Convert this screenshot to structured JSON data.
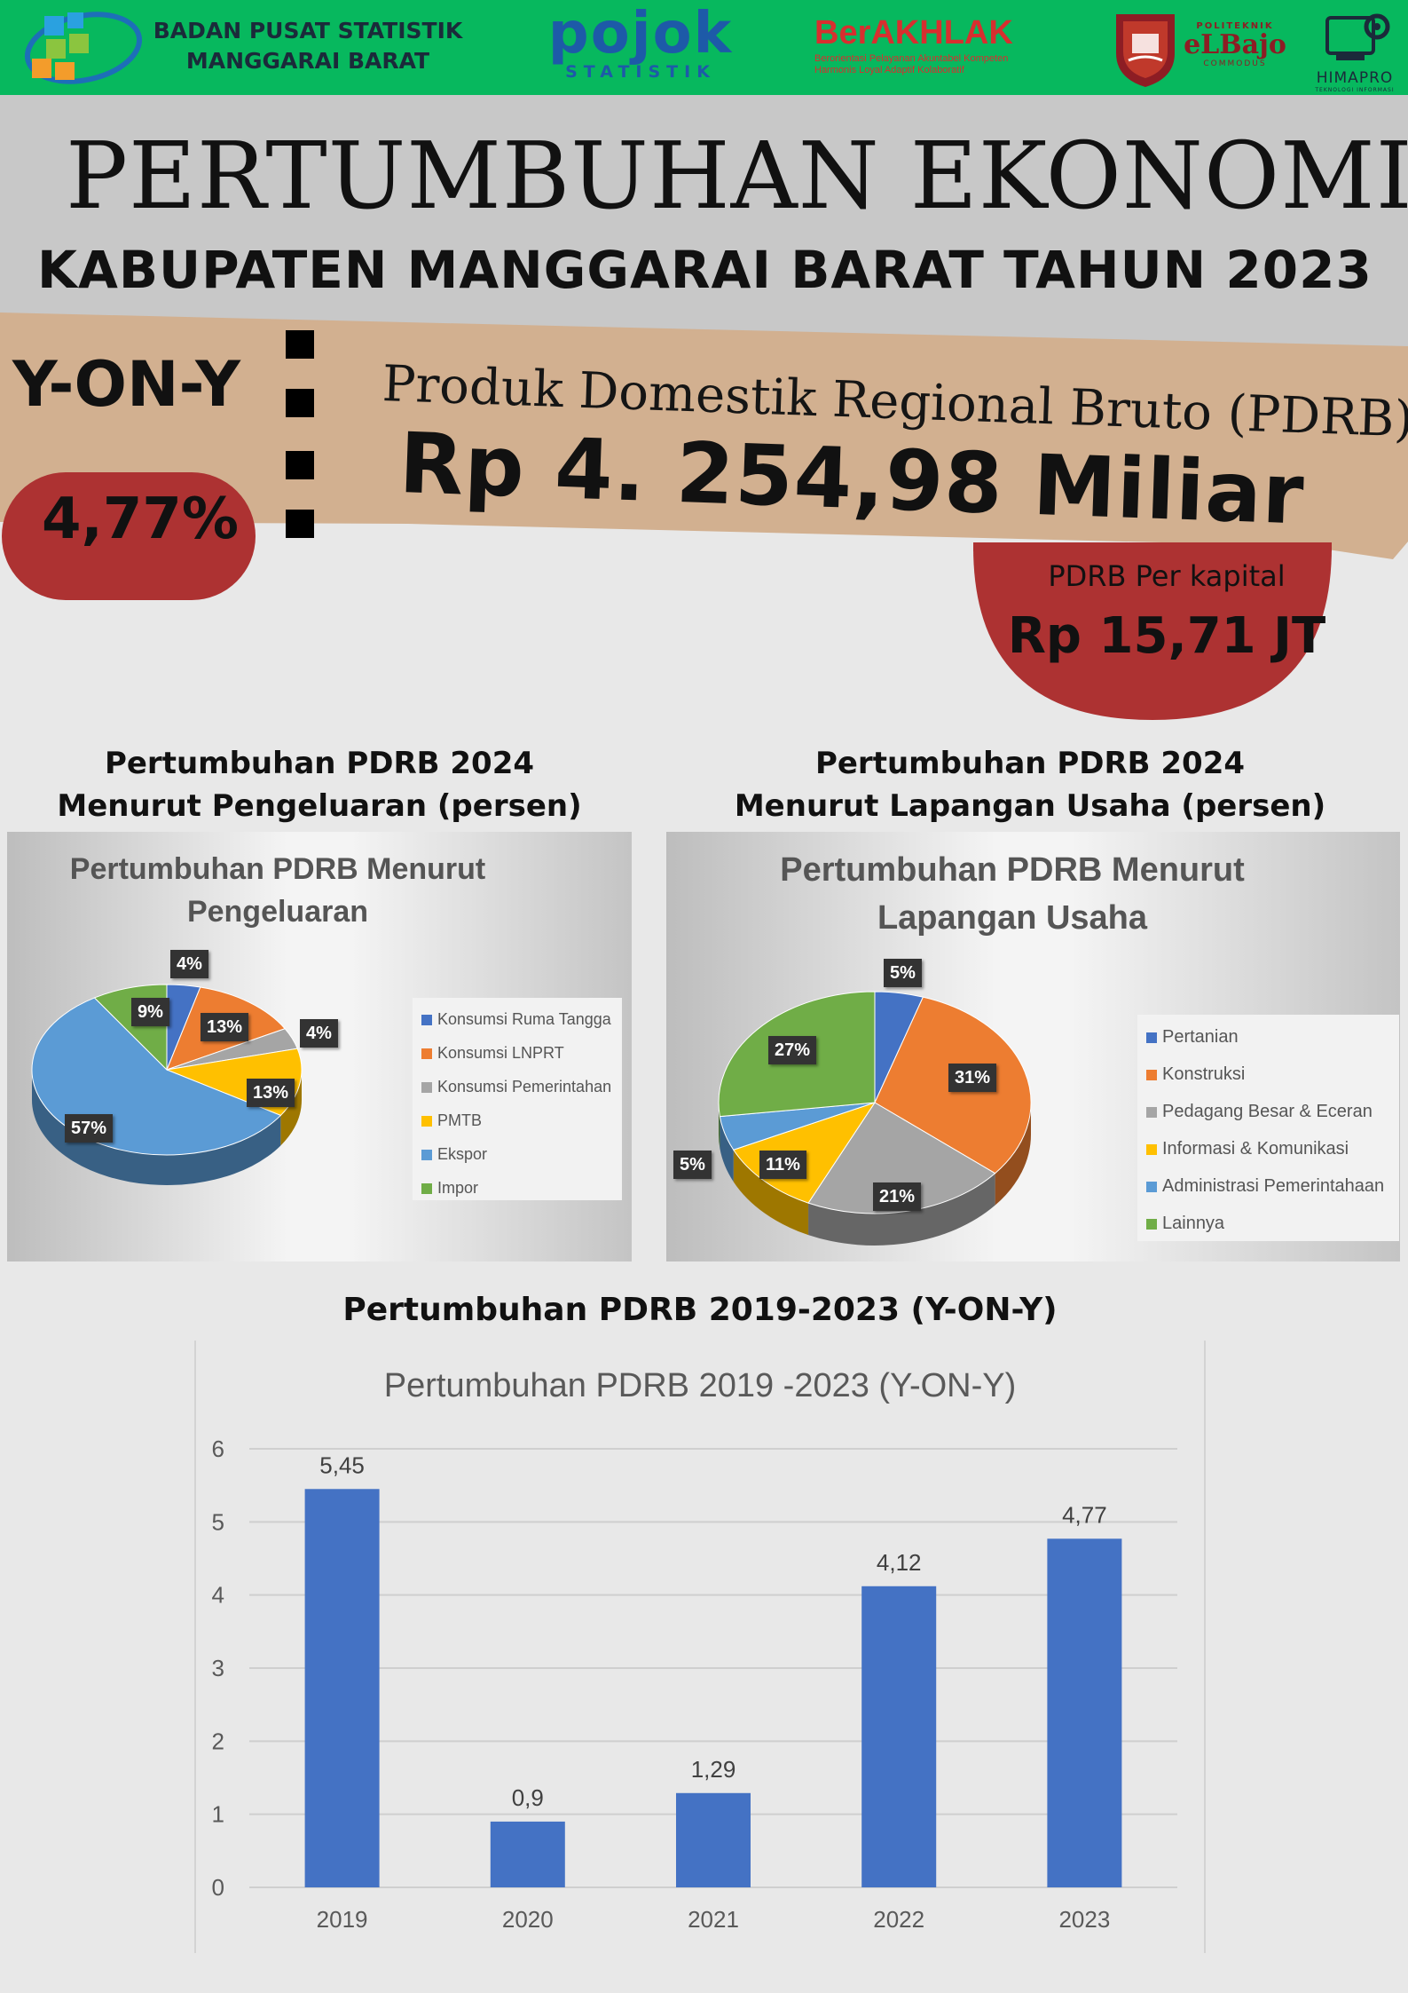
{
  "header": {
    "bps_line1": "BADAN PUSAT STATISTIK",
    "bps_line2": "MANGGARAI BARAT",
    "pojok_word": "pojok",
    "pojok_sub": "STATISTIK",
    "berakhlak_word": "BerAKHLAK",
    "berakhlak_sub1": "Berorientasi Pelayanan Akuntabel Kompeten",
    "berakhlak_sub2": "Harmonis Loyal Adaptif Kolaboratif",
    "poltek_small": "POLITEKNIK",
    "poltek_big": "eLBajo",
    "poltek_sub": "COMMODUS",
    "himapro": "HIMAPRO",
    "himapro_sub": "TEKNOLOGI INFORMASI"
  },
  "title": {
    "main": "PERTUMBUHAN EKONOMI",
    "sub": "KABUPATEN MANGGARAI BARAT TAHUN 2023"
  },
  "highlight": {
    "yony_label": "Y-ON-Y",
    "growth": "4,77%",
    "pdrb_label": "Produk Domestik Regional Bruto (PDRB)",
    "pdrb_value": "Rp 4. 254,98 Miliar",
    "per_capita_label": "PDRB Per kapital",
    "per_capita_value": "Rp 15,71 JT"
  },
  "sections": {
    "pengeluaran_line1": "Pertumbuhan PDRB 2024",
    "pengeluaran_line2": "Menurut Pengeluaran (persen)",
    "lapangan_line1": "Pertumbuhan PDRB 2024",
    "lapangan_line2": "Menurut  Lapangan Usaha (persen)",
    "bar_title": "Pertumbuhan PDRB 2019-2023  (Y-ON-Y)"
  },
  "colors": {
    "header_green": "#07b85e",
    "accent_red": "#ad3232",
    "tan": "#d2b090",
    "bar_blue": "#4472c4"
  },
  "chart_data": [
    {
      "type": "pie",
      "title": "Pertumbuhan PDRB Menurut Pengeluaran",
      "title_line1": "Pertumbuhan PDRB Menurut",
      "title_line2": "Pengeluaran",
      "categories": [
        "Konsumsi Ruma Tangga",
        "Konsumsi LNPRT",
        "Konsumsi Pemerintahan",
        "PMTB",
        "Ekspor",
        "Impor"
      ],
      "values": [
        4,
        13,
        4,
        13,
        57,
        9
      ],
      "labels": [
        "4%",
        "13%",
        "4%",
        "13%",
        "57%",
        "9%"
      ],
      "colors": [
        "#4472c4",
        "#ed7d31",
        "#a5a5a5",
        "#ffc000",
        "#5b9bd5",
        "#70ad47"
      ],
      "legend": "right"
    },
    {
      "type": "pie",
      "title": "Pertumbuhan PDRB  Menurut Lapangan Usaha",
      "title_line1": "Pertumbuhan PDRB  Menurut",
      "title_line2": "Lapangan Usaha",
      "categories": [
        "Pertanian",
        "Konstruksi",
        "Pedagang Besar & Eceran",
        "Informasi & Komunikasi",
        "Administrasi Pemerintahaan",
        "Lainnya"
      ],
      "values": [
        5,
        31,
        21,
        11,
        5,
        27
      ],
      "labels": [
        "5%",
        "31%",
        "21%",
        "11%",
        "5%",
        "27%"
      ],
      "colors": [
        "#4472c4",
        "#ed7d31",
        "#a5a5a5",
        "#ffc000",
        "#5b9bd5",
        "#70ad47"
      ],
      "legend": "right"
    },
    {
      "type": "bar",
      "title": "Pertumbuhan PDRB 2019 -2023 (Y-ON-Y)",
      "categories": [
        "2019",
        "2020",
        "2021",
        "2022",
        "2023"
      ],
      "values": [
        5.45,
        0.9,
        1.29,
        4.12,
        4.77
      ],
      "labels": [
        "5,45",
        "0,9",
        "1,29",
        "4,12",
        "4,77"
      ],
      "yticks": [
        "0",
        "1",
        "2",
        "3",
        "4",
        "5",
        "6"
      ],
      "ylim": [
        0,
        6
      ],
      "grid": true,
      "color": "#4472c4"
    }
  ]
}
